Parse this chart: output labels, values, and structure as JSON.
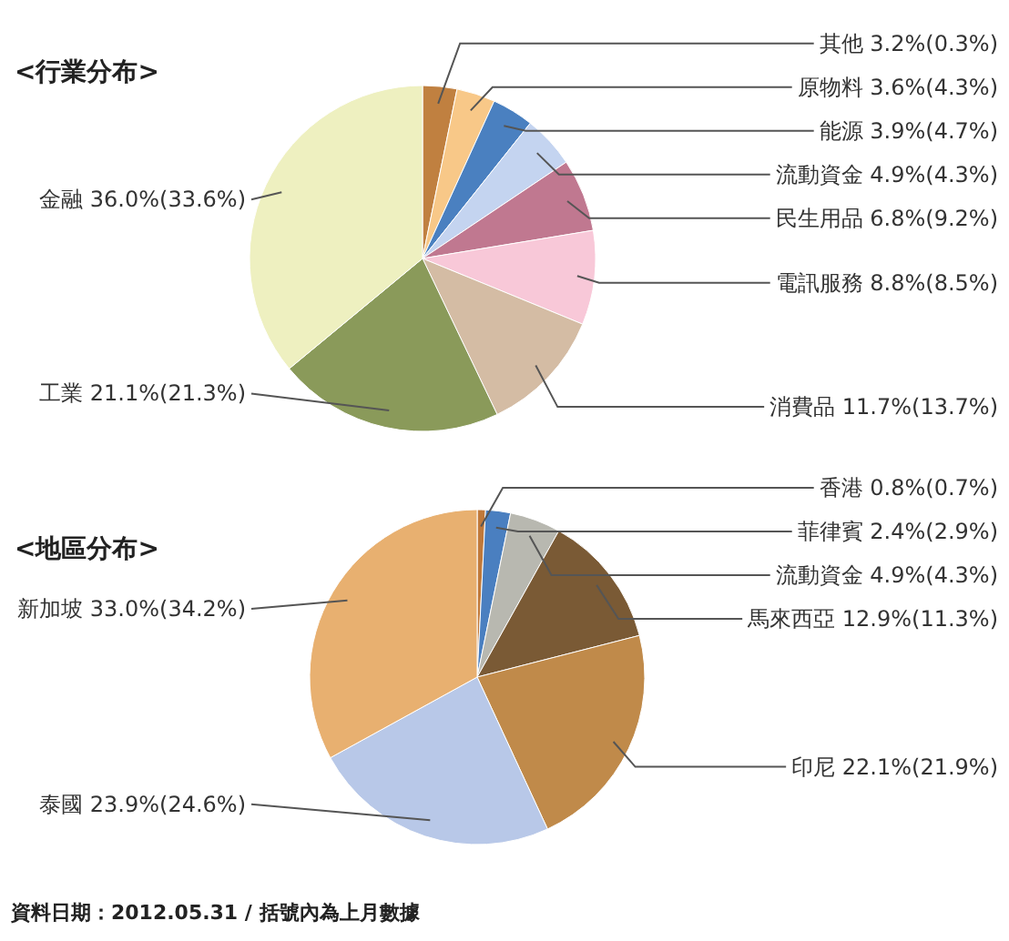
{
  "chart_data": [
    {
      "type": "pie",
      "title": "<行業分布>",
      "categories": [
        "其他",
        "原物料",
        "能源",
        "流動資金",
        "民生用品",
        "電訊服務",
        "消費品",
        "工業",
        "金融"
      ],
      "values": [
        3.2,
        3.6,
        3.9,
        4.9,
        6.8,
        8.8,
        11.7,
        21.1,
        36.0
      ],
      "value_labels": [
        "3.2%(0.3%)",
        "3.6%(4.3%)",
        "3.9%(4.7%)",
        "4.9%(4.3%)",
        "6.8%(9.2%)",
        "8.8%(8.5%)",
        "11.7%(13.7%)",
        "21.1%(21.3%)",
        "36.0%(33.6%)"
      ],
      "colors": [
        "#c08040",
        "#f8c888",
        "#4a80c0",
        "#c4d4f0",
        "#c07890",
        "#f8c8d8",
        "#d4bca4",
        "#8a9a5a",
        "#eef0c0"
      ]
    },
    {
      "type": "pie",
      "title": "<地區分布>",
      "categories": [
        "香港",
        "菲律賓",
        "流動資金",
        "馬來西亞",
        "印尼",
        "泰國",
        "新加坡"
      ],
      "values": [
        0.8,
        2.4,
        4.9,
        12.9,
        22.1,
        23.9,
        33.0
      ],
      "value_labels": [
        "0.8%(0.7%)",
        "2.4%(2.9%)",
        "4.9%(4.3%)",
        "12.9%(11.3%)",
        "22.1%(21.9%)",
        "23.9%(24.6%)",
        "33.0%(34.2%)"
      ],
      "colors": [
        "#c0793a",
        "#4a7fc0",
        "#b8b8b0",
        "#7a5a35",
        "#c08a4a",
        "#b8c8e8",
        "#e8b070"
      ],
      "annotations": [
        "資料日期：2012.05.31 / 括號內為上月數據"
      ]
    }
  ]
}
